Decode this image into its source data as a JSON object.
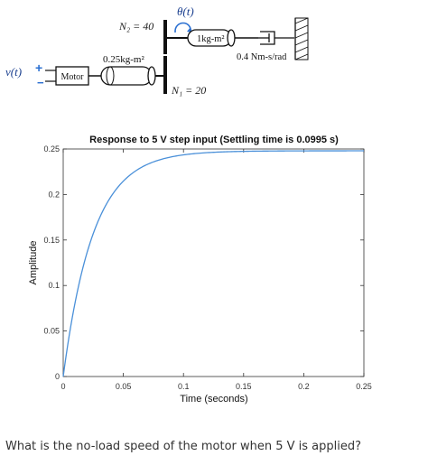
{
  "diagram": {
    "theta_label": "θ(t)",
    "n2_label": "N₂ = 40",
    "n1_label": "N₁ = 20",
    "inertia_motor_label": "0.25kg-m²",
    "inertia_load_label": "1kg-m²",
    "damping_label": "0.4 Nm-s/rad",
    "input_label": "v(t)",
    "plus_label": "+",
    "minus_label": "−",
    "motor_label": "Motor"
  },
  "chart_data": {
    "type": "line",
    "title": "Response to 5 V step input (Settling time is 0.0995 s)",
    "xlabel": "Time (seconds)",
    "ylabel": "Amplitude",
    "xlim": [
      0,
      0.25
    ],
    "ylim": [
      0,
      0.25
    ],
    "x_ticks": [
      0,
      0.05,
      0.1,
      0.15,
      0.2,
      0.25
    ],
    "y_ticks": [
      0,
      0.05,
      0.1,
      0.15,
      0.2,
      0.25
    ],
    "x_tick_labels": [
      "0",
      "0.05",
      "0.1",
      "0.15",
      "0.2",
      "0.25"
    ],
    "y_tick_labels": [
      "0",
      "0.05",
      "0.1",
      "0.15",
      "0.2",
      "0.25"
    ],
    "grid": false,
    "series_color": "#4a90d9",
    "final_value": 0.248,
    "time_constant": 0.0249,
    "x": [
      0,
      0.005,
      0.01,
      0.015,
      0.02,
      0.025,
      0.03,
      0.035,
      0.04,
      0.045,
      0.05,
      0.06,
      0.07,
      0.08,
      0.09,
      0.1,
      0.12,
      0.14,
      0.16,
      0.18,
      0.2,
      0.22,
      0.25
    ],
    "y": [
      0,
      0.045,
      0.082,
      0.112,
      0.137,
      0.157,
      0.173,
      0.186,
      0.197,
      0.206,
      0.213,
      0.224,
      0.233,
      0.238,
      0.241,
      0.243,
      0.246,
      0.247,
      0.248,
      0.248,
      0.248,
      0.248,
      0.248
    ]
  },
  "question": "What is the no-load speed of the motor when 5 V is applied?"
}
